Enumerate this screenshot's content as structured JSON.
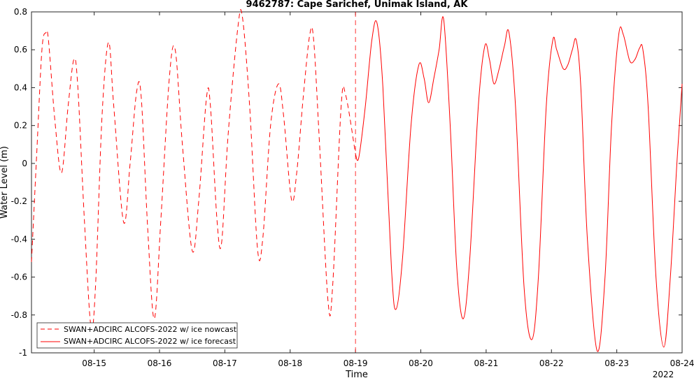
{
  "chart_data": {
    "type": "line",
    "title": "9462787: Cape Sarichef, Unimak Island, AK",
    "xlabel": "Time",
    "ylabel": "Water Level (m)",
    "x_year_label": "2022",
    "xlim": [
      "08-14 01:00",
      "08-24 00:00"
    ],
    "ylim": [
      -1,
      0.8
    ],
    "x_ticks": [
      "08-15",
      "08-16",
      "08-17",
      "08-18",
      "08-19",
      "08-20",
      "08-21",
      "08-22",
      "08-23",
      "08-24"
    ],
    "y_ticks": [
      "-1",
      "-0.8",
      "-0.6",
      "-0.4",
      "-0.2",
      "0",
      "0.2",
      "0.4",
      "0.6",
      "0.8"
    ],
    "x_tick_days": [
      15,
      16,
      17,
      18,
      19,
      20,
      21,
      22,
      23,
      24
    ],
    "y_tick_values": [
      -1,
      -0.8,
      -0.6,
      -0.4,
      -0.2,
      0,
      0.2,
      0.4,
      0.6,
      0.8
    ],
    "nowcast_forecast_divider": "08-19 00:00",
    "grid": false,
    "legend_position": "bottom-left",
    "series": [
      {
        "name": "SWAN+ADCIRC ALCOFS-2022 w/ ice nowcast",
        "color": "#ff0000",
        "dash": "dashed",
        "points_day_value": [
          [
            14.04,
            -0.52
          ],
          [
            14.12,
            0.05
          ],
          [
            14.2,
            0.6
          ],
          [
            14.26,
            0.69
          ],
          [
            14.3,
            0.65
          ],
          [
            14.4,
            0.22
          ],
          [
            14.5,
            -0.05
          ],
          [
            14.6,
            0.3
          ],
          [
            14.69,
            0.55
          ],
          [
            14.75,
            0.4
          ],
          [
            14.85,
            -0.3
          ],
          [
            14.95,
            -0.86
          ],
          [
            15.02,
            -0.65
          ],
          [
            15.12,
            0.25
          ],
          [
            15.22,
            0.64
          ],
          [
            15.3,
            0.3
          ],
          [
            15.45,
            -0.31
          ],
          [
            15.55,
            0.0
          ],
          [
            15.65,
            0.38
          ],
          [
            15.72,
            0.35
          ],
          [
            15.82,
            -0.35
          ],
          [
            15.92,
            -0.82
          ],
          [
            16.02,
            -0.3
          ],
          [
            16.15,
            0.45
          ],
          [
            16.24,
            0.6
          ],
          [
            16.35,
            0.1
          ],
          [
            16.5,
            -0.46
          ],
          [
            16.6,
            -0.2
          ],
          [
            16.72,
            0.35
          ],
          [
            16.78,
            0.3
          ],
          [
            16.88,
            -0.3
          ],
          [
            16.95,
            -0.42
          ],
          [
            17.05,
            0.15
          ],
          [
            17.2,
            0.72
          ],
          [
            17.27,
            0.77
          ],
          [
            17.38,
            0.3
          ],
          [
            17.5,
            -0.45
          ],
          [
            17.58,
            -0.4
          ],
          [
            17.7,
            0.2
          ],
          [
            17.82,
            0.42
          ],
          [
            17.9,
            0.25
          ],
          [
            18.02,
            -0.19
          ],
          [
            18.1,
            -0.05
          ],
          [
            18.2,
            0.35
          ],
          [
            18.3,
            0.68
          ],
          [
            18.36,
            0.65
          ],
          [
            18.45,
            0.1
          ],
          [
            18.58,
            -0.73
          ],
          [
            18.65,
            -0.65
          ],
          [
            18.78,
            0.3
          ],
          [
            18.85,
            0.36
          ],
          [
            19.0,
            0.05
          ]
        ]
      },
      {
        "name": "SWAN+ADCIRC ALCOFS-2022 w/ ice forecast",
        "color": "#ff0000",
        "dash": "solid",
        "points_day_value": [
          [
            19.0,
            0.05
          ],
          [
            19.05,
            0.03
          ],
          [
            19.15,
            0.3
          ],
          [
            19.25,
            0.65
          ],
          [
            19.33,
            0.74
          ],
          [
            19.42,
            0.4
          ],
          [
            19.55,
            -0.55
          ],
          [
            19.62,
            -0.77
          ],
          [
            19.72,
            -0.5
          ],
          [
            19.85,
            0.2
          ],
          [
            19.97,
            0.52
          ],
          [
            20.05,
            0.45
          ],
          [
            20.12,
            0.32
          ],
          [
            20.2,
            0.45
          ],
          [
            20.28,
            0.6
          ],
          [
            20.35,
            0.76
          ],
          [
            20.45,
            0.2
          ],
          [
            20.55,
            -0.55
          ],
          [
            20.65,
            -0.82
          ],
          [
            20.75,
            -0.5
          ],
          [
            20.88,
            0.3
          ],
          [
            20.98,
            0.62
          ],
          [
            21.05,
            0.55
          ],
          [
            21.12,
            0.42
          ],
          [
            21.2,
            0.5
          ],
          [
            21.28,
            0.62
          ],
          [
            21.35,
            0.69
          ],
          [
            21.45,
            0.3
          ],
          [
            21.58,
            -0.65
          ],
          [
            21.7,
            -0.93
          ],
          [
            21.8,
            -0.6
          ],
          [
            21.92,
            0.3
          ],
          [
            22.02,
            0.65
          ],
          [
            22.08,
            0.6
          ],
          [
            22.18,
            0.5
          ],
          [
            22.25,
            0.52
          ],
          [
            22.32,
            0.6
          ],
          [
            22.38,
            0.65
          ],
          [
            22.45,
            0.4
          ],
          [
            22.55,
            -0.4
          ],
          [
            22.7,
            -0.99
          ],
          [
            22.82,
            -0.6
          ],
          [
            22.92,
            0.2
          ],
          [
            23.03,
            0.68
          ],
          [
            23.1,
            0.68
          ],
          [
            23.2,
            0.54
          ],
          [
            23.28,
            0.55
          ],
          [
            23.35,
            0.61
          ],
          [
            23.4,
            0.6
          ],
          [
            23.48,
            0.3
          ],
          [
            23.6,
            -0.6
          ],
          [
            23.72,
            -0.97
          ],
          [
            23.82,
            -0.6
          ],
          [
            23.92,
            0.0
          ],
          [
            24.0,
            0.42
          ]
        ]
      }
    ]
  }
}
